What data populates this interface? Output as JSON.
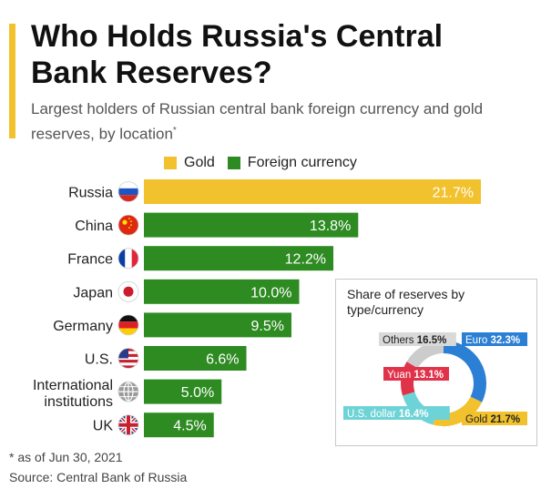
{
  "header": {
    "title": "Who Holds Russia's Central Bank Reserves?",
    "subtitle": "Largest holders of Russian central bank foreign currency and gold reserves, by location",
    "subtitle_mark": "*"
  },
  "colors": {
    "accent": "#f2c12e",
    "gold": "#f2c12e",
    "foreign_currency": "#2e8b22",
    "euro": "#2b7fd4",
    "yuan": "#e0334a",
    "us_dollar": "#6ed3d6",
    "others": "#cccccc"
  },
  "footer": {
    "footnote": "* as of Jun 30, 2021",
    "source": "Source: Central Bank of Russia"
  },
  "chart_data": [
    {
      "type": "bar",
      "orientation": "horizontal",
      "legend": [
        "Gold",
        "Foreign currency"
      ],
      "legend_placement": "top",
      "categories": [
        "Russia",
        "China",
        "France",
        "Japan",
        "Germany",
        "U.S.",
        "International institutions",
        "UK"
      ],
      "values": [
        21.7,
        13.8,
        12.2,
        10.0,
        9.5,
        6.6,
        5.0,
        4.5
      ],
      "value_labels": [
        "21.7%",
        "13.8%",
        "12.2%",
        "10.0%",
        "9.5%",
        "6.6%",
        "5.0%",
        "4.5%"
      ],
      "series_by_bar": [
        "Gold",
        "Foreign currency",
        "Foreign currency",
        "Foreign currency",
        "Foreign currency",
        "Foreign currency",
        "Foreign currency",
        "Foreign currency"
      ],
      "flag_icons": [
        "russia-flag-icon",
        "china-flag-icon",
        "france-flag-icon",
        "japan-flag-icon",
        "germany-flag-icon",
        "us-flag-icon",
        "globe-icon",
        "uk-flag-icon"
      ],
      "xlim": [
        0,
        21.7
      ],
      "unit": "%",
      "grid": false
    },
    {
      "type": "pie",
      "style": "donut",
      "title": "Share of reserves by type/currency",
      "slices": [
        {
          "label": "Euro",
          "value": 32.3,
          "value_label": "32.3%"
        },
        {
          "label": "Gold",
          "value": 21.7,
          "value_label": "21.7%"
        },
        {
          "label": "U.S. dollar",
          "value": 16.4,
          "value_label": "16.4%"
        },
        {
          "label": "Yuan",
          "value": 13.1,
          "value_label": "13.1%"
        },
        {
          "label": "Others",
          "value": 16.5,
          "value_label": "16.5%"
        }
      ]
    }
  ]
}
